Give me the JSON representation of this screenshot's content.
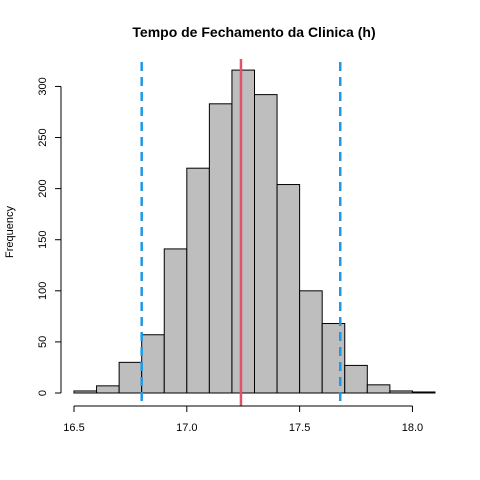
{
  "chart_data": {
    "type": "bar",
    "title": "Tempo de Fechamento da Clinica (h)",
    "xlabel": "",
    "ylabel": "Frequency",
    "xlim": [
      16.5,
      18.1
    ],
    "ylim": [
      0,
      320
    ],
    "x_ticks": [
      16.5,
      17.0,
      17.5,
      18.0
    ],
    "x_tick_labels": [
      "16.5",
      "17.0",
      "17.5",
      "18.0"
    ],
    "y_ticks": [
      0,
      50,
      100,
      150,
      200,
      250,
      300
    ],
    "y_tick_labels": [
      "0",
      "50",
      "100",
      "150",
      "200",
      "250",
      "300"
    ],
    "bin_edges": [
      16.5,
      16.6,
      16.7,
      16.8,
      16.9,
      17.0,
      17.1,
      17.2,
      17.3,
      17.4,
      17.5,
      17.6,
      17.7,
      17.8,
      17.9,
      18.0,
      18.1
    ],
    "values": [
      2,
      7,
      30,
      57,
      141,
      220,
      283,
      316,
      292,
      204,
      100,
      68,
      27,
      8,
      2,
      1
    ],
    "bar_fill": "#bebebe",
    "bar_stroke": "#000000",
    "mean_line": {
      "x": 17.24,
      "color": "#df536b"
    },
    "interval_lines": {
      "x": [
        16.8,
        17.68
      ],
      "color": "#2297e6"
    },
    "grid": false
  }
}
